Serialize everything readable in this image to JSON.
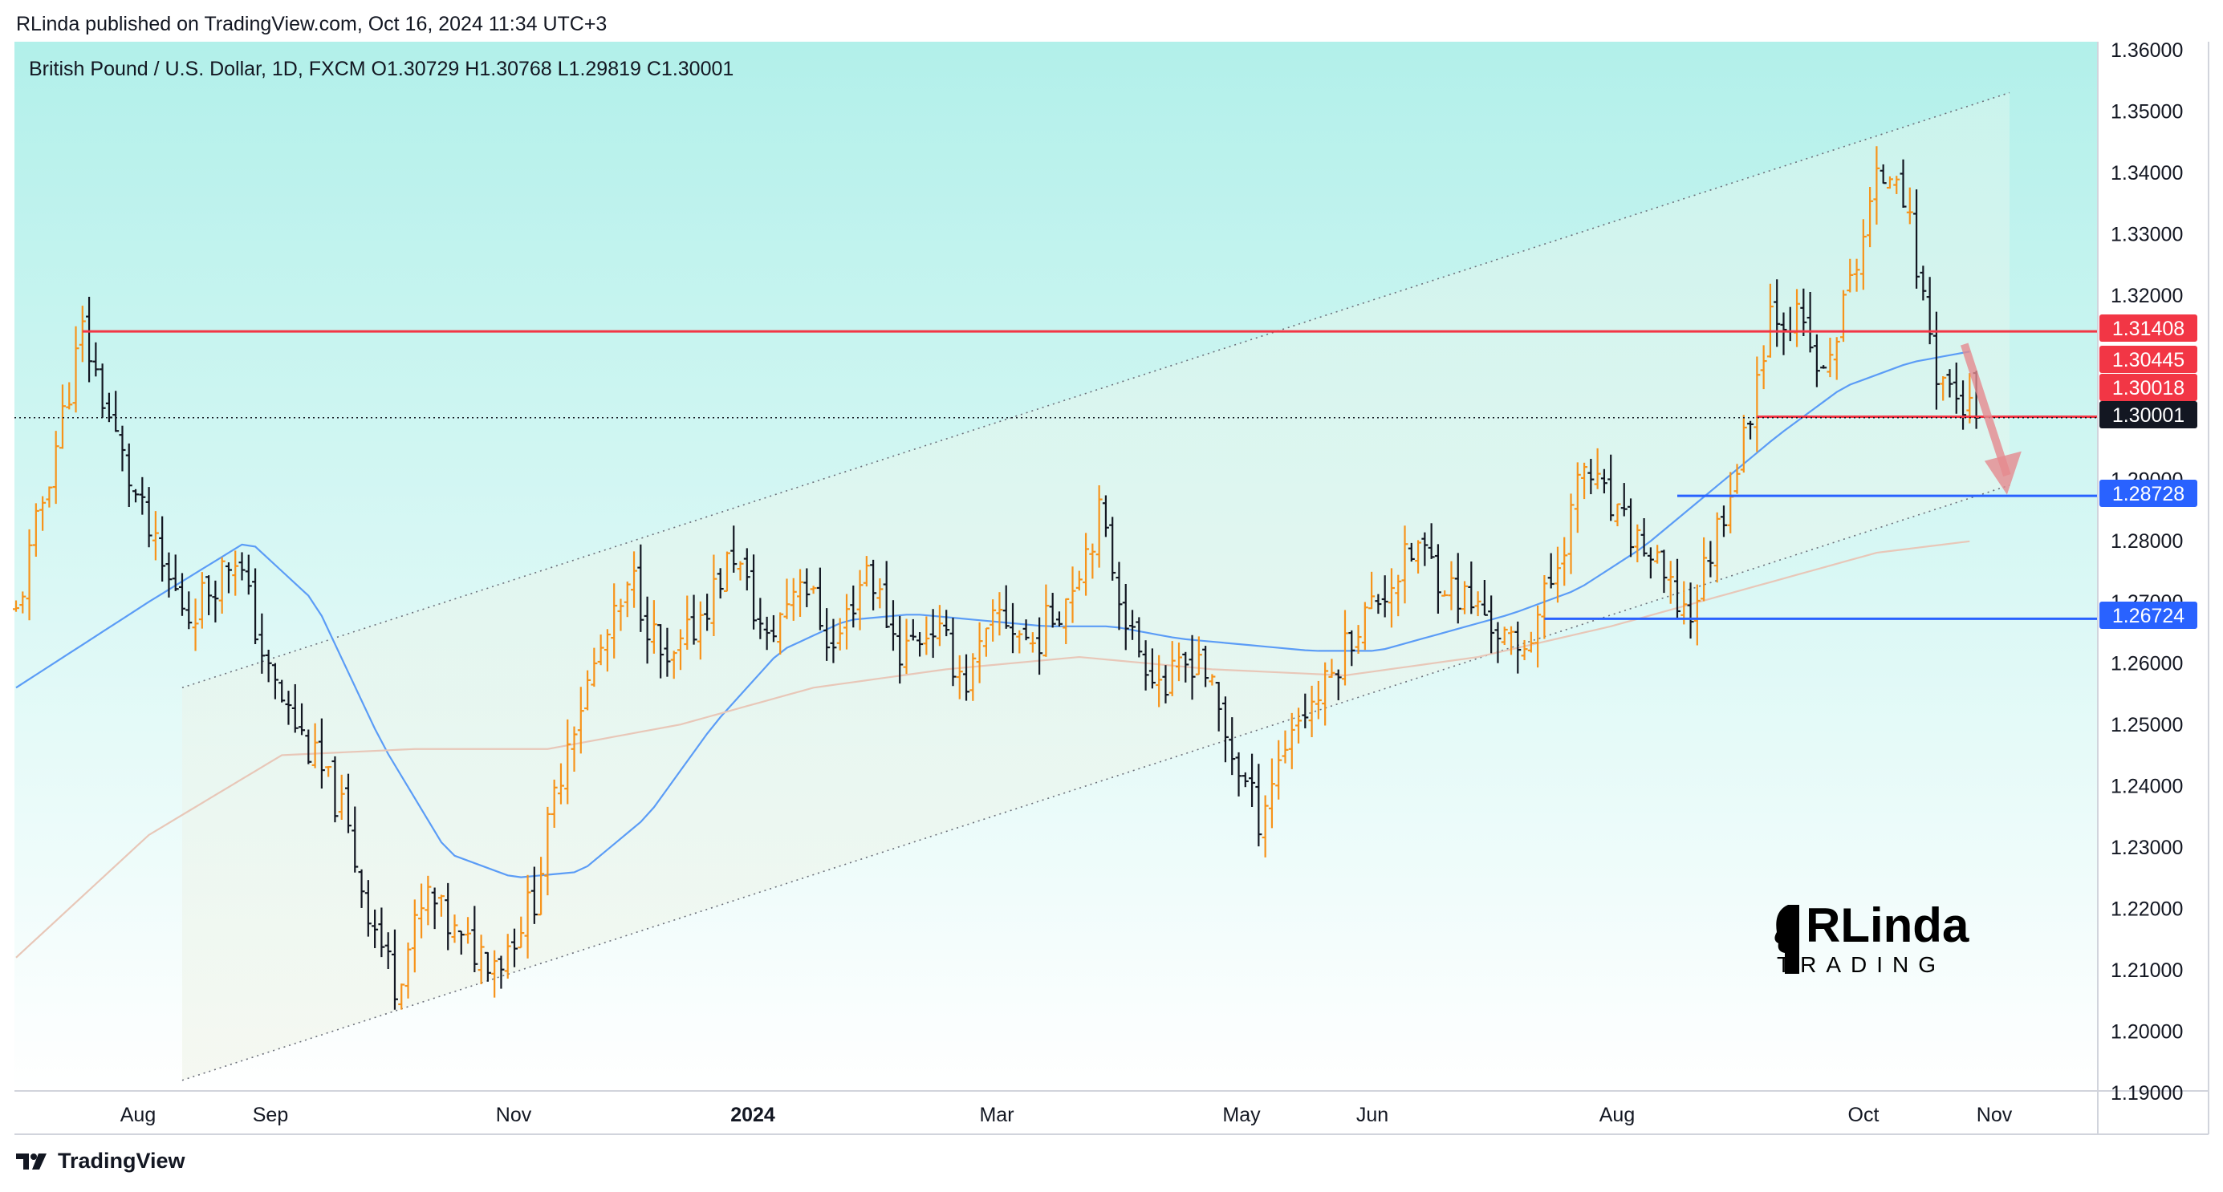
{
  "header": {
    "published": "RLinda published on TradingView.com, Oct 16, 2024 11:34 UTC+3",
    "symbol_line": "British Pound / U.S. Dollar, 1D, FXCM  O1.30729  H1.30768  L1.29819  C1.30001"
  },
  "footer": {
    "brand": "TradingView"
  },
  "watermark": {
    "line1": "RLinda",
    "line2": "TRADING"
  },
  "colors": {
    "bull": "#f7931a",
    "bear": "#131722",
    "resistance": "#f23645",
    "support": "#2962ff",
    "ma_fast": "#5b9cf6",
    "ma_slow": "#e8c7b8",
    "channel": "#6b6f7a",
    "bg_top": "#b2f0ea",
    "bg_bottom": "#ffffff"
  },
  "chart_data": {
    "type": "candlestick",
    "title": "British Pound / U.S. Dollar, 1D, FXCM",
    "ohlc_last": {
      "open": 1.30729,
      "high": 1.30768,
      "low": 1.29819,
      "close": 1.30001
    },
    "x_axis_labels": [
      "Aug",
      "Sep",
      "Nov",
      "2024",
      "Mar",
      "May",
      "Jun",
      "Aug",
      "Oct",
      "Nov"
    ],
    "y_axis_ticks": [
      "1.36000",
      "1.35000",
      "1.34000",
      "1.33000",
      "1.32000",
      "1.29000",
      "1.28000",
      "1.27000",
      "1.26000",
      "1.25000",
      "1.24000",
      "1.23000",
      "1.22000",
      "1.21000",
      "1.20000",
      "1.19000"
    ],
    "ylim": [
      1.19,
      1.36
    ],
    "price_levels": [
      {
        "label": "1.31408",
        "value": 1.31408,
        "kind": "resistance"
      },
      {
        "label": "1.30445",
        "value": 1.30445,
        "kind": "resistance"
      },
      {
        "label": "1.30018",
        "value": 1.30018,
        "kind": "resistance"
      },
      {
        "label": "1.30001",
        "value": 1.30001,
        "kind": "current"
      },
      {
        "label": "1.28728",
        "value": 1.28728,
        "kind": "support"
      },
      {
        "label": "1.26724",
        "value": 1.26724,
        "kind": "support"
      }
    ],
    "price_path": [
      [
        0,
        1.268
      ],
      [
        8,
        1.305
      ],
      [
        10,
        1.314
      ],
      [
        14,
        1.3
      ],
      [
        17,
        1.29
      ],
      [
        22,
        1.275
      ],
      [
        26,
        1.268
      ],
      [
        33,
        1.278
      ],
      [
        38,
        1.258
      ],
      [
        43,
        1.248
      ],
      [
        49,
        1.236
      ],
      [
        53,
        1.22
      ],
      [
        57,
        1.208
      ],
      [
        62,
        1.222
      ],
      [
        67,
        1.214
      ],
      [
        73,
        1.212
      ],
      [
        78,
        1.222
      ],
      [
        83,
        1.248
      ],
      [
        88,
        1.262
      ],
      [
        93,
        1.273
      ],
      [
        98,
        1.258
      ],
      [
        103,
        1.268
      ],
      [
        108,
        1.278
      ],
      [
        113,
        1.263
      ],
      [
        118,
        1.275
      ],
      [
        123,
        1.262
      ],
      [
        128,
        1.276
      ],
      [
        133,
        1.262
      ],
      [
        138,
        1.266
      ],
      [
        143,
        1.257
      ],
      [
        148,
        1.268
      ],
      [
        153,
        1.263
      ],
      [
        158,
        1.271
      ],
      [
        163,
        1.284
      ],
      [
        168,
        1.264
      ],
      [
        173,
        1.256
      ],
      [
        178,
        1.262
      ],
      [
        182,
        1.248
      ],
      [
        187,
        1.235
      ],
      [
        192,
        1.25
      ],
      [
        197,
        1.256
      ],
      [
        201,
        1.265
      ],
      [
        206,
        1.272
      ],
      [
        211,
        1.279
      ],
      [
        216,
        1.272
      ],
      [
        221,
        1.268
      ],
      [
        226,
        1.261
      ],
      [
        231,
        1.273
      ],
      [
        236,
        1.292
      ],
      [
        241,
        1.283
      ],
      [
        245,
        1.279
      ],
      [
        249,
        1.271
      ],
      [
        252,
        1.268
      ],
      [
        256,
        1.282
      ],
      [
        260,
        1.296
      ],
      [
        264,
        1.318
      ],
      [
        268,
        1.316
      ],
      [
        272,
        1.306
      ],
      [
        276,
        1.322
      ],
      [
        280,
        1.338
      ],
      [
        283,
        1.342
      ],
      [
        286,
        1.325
      ],
      [
        289,
        1.308
      ],
      [
        293,
        1.302
      ],
      [
        295,
        1.3
      ]
    ],
    "moving_averages": [
      {
        "name": "",
        "color": "fast",
        "values": [
          [
            0,
            1.256
          ],
          [
            20,
            1.27
          ],
          [
            35,
            1.28
          ],
          [
            45,
            1.27
          ],
          [
            55,
            1.247
          ],
          [
            65,
            1.229
          ],
          [
            75,
            1.225
          ],
          [
            85,
            1.226
          ],
          [
            95,
            1.235
          ],
          [
            105,
            1.25
          ],
          [
            115,
            1.262
          ],
          [
            125,
            1.267
          ],
          [
            135,
            1.268
          ],
          [
            145,
            1.267
          ],
          [
            155,
            1.266
          ],
          [
            165,
            1.266
          ],
          [
            175,
            1.264
          ],
          [
            185,
            1.263
          ],
          [
            195,
            1.262
          ],
          [
            205,
            1.262
          ],
          [
            215,
            1.265
          ],
          [
            225,
            1.268
          ],
          [
            235,
            1.272
          ],
          [
            245,
            1.279
          ],
          [
            255,
            1.288
          ],
          [
            265,
            1.297
          ],
          [
            275,
            1.305
          ],
          [
            285,
            1.309
          ],
          [
            295,
            1.311
          ]
        ]
      },
      {
        "name": "",
        "color": "slow",
        "values": [
          [
            0,
            1.212
          ],
          [
            20,
            1.232
          ],
          [
            40,
            1.245
          ],
          [
            60,
            1.246
          ],
          [
            80,
            1.246
          ],
          [
            100,
            1.25
          ],
          [
            120,
            1.256
          ],
          [
            140,
            1.259
          ],
          [
            160,
            1.261
          ],
          [
            180,
            1.259
          ],
          [
            200,
            1.258
          ],
          [
            220,
            1.261
          ],
          [
            240,
            1.266
          ],
          [
            260,
            1.272
          ],
          [
            280,
            1.278
          ],
          [
            295,
            1.28
          ]
        ]
      }
    ],
    "channel": {
      "upper": [
        [
          25,
          1.256
        ],
        [
          300,
          1.353
        ]
      ],
      "lower": [
        [
          25,
          1.192
        ],
        [
          300,
          1.289
        ]
      ]
    },
    "projection_arrow": {
      "from": [
        292,
        1.312
      ],
      "to": [
        296,
        1.288
      ]
    }
  }
}
